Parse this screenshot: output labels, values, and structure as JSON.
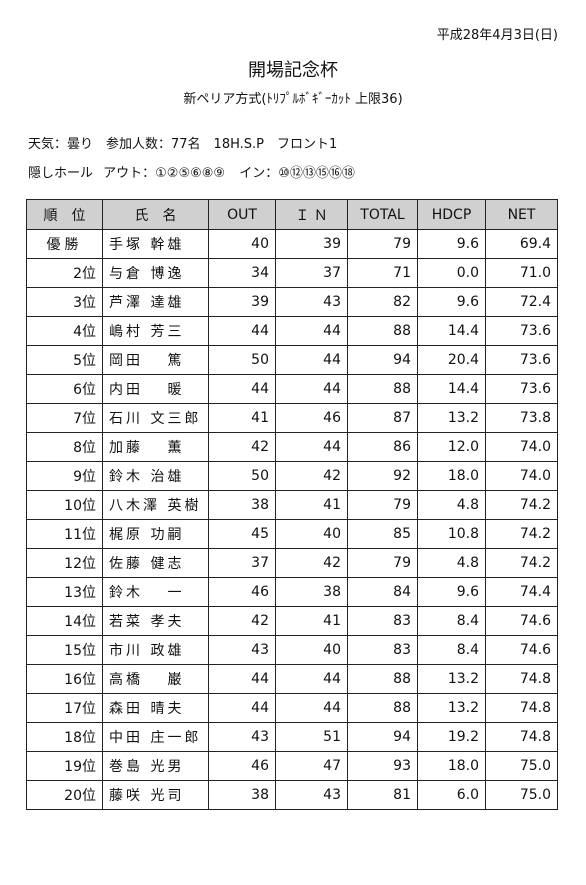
{
  "date": "平成28年4月3日(日)",
  "title": "開場記念杯",
  "subtitle": "新ペリア方式(ﾄﾘﾌﾟﾙﾎﾞｷﾞｰｶｯﾄ 上限36)",
  "info": {
    "line1": "天気：曇り　参加人数：77名　18H.S.P　フロント1",
    "hidden_label": "隠しホール",
    "out_holes": "アウト：①②⑤⑥⑧⑨",
    "in_holes": "イン：⑩⑫⑬⑮⑯⑱"
  },
  "table": {
    "headers": [
      "順　位",
      "氏　名",
      "OUT",
      "Ｉ Ｎ",
      "TOTAL",
      "HDCP",
      "NET"
    ],
    "rows": [
      {
        "rank": "優勝",
        "name": "手塚 幹雄",
        "out": "40",
        "in": "39",
        "total": "79",
        "hdcp": "9.6",
        "net": "69.4"
      },
      {
        "rank": "2位",
        "name": "与倉 博逸",
        "out": "34",
        "in": "37",
        "total": "71",
        "hdcp": "0.0",
        "net": "71.0"
      },
      {
        "rank": "3位",
        "name": "芦澤 達雄",
        "out": "39",
        "in": "43",
        "total": "82",
        "hdcp": "9.6",
        "net": "72.4"
      },
      {
        "rank": "4位",
        "name": "嶋村 芳三",
        "out": "44",
        "in": "44",
        "total": "88",
        "hdcp": "14.4",
        "net": "73.6"
      },
      {
        "rank": "5位",
        "name": "岡田　 篤",
        "out": "50",
        "in": "44",
        "total": "94",
        "hdcp": "20.4",
        "net": "73.6"
      },
      {
        "rank": "6位",
        "name": "内田　 暖",
        "out": "44",
        "in": "44",
        "total": "88",
        "hdcp": "14.4",
        "net": "73.6"
      },
      {
        "rank": "7位",
        "name": "石川 文三郎",
        "out": "41",
        "in": "46",
        "total": "87",
        "hdcp": "13.2",
        "net": "73.8"
      },
      {
        "rank": "8位",
        "name": "加藤　 薫",
        "out": "42",
        "in": "44",
        "total": "86",
        "hdcp": "12.0",
        "net": "74.0"
      },
      {
        "rank": "9位",
        "name": "鈴木 治雄",
        "out": "50",
        "in": "42",
        "total": "92",
        "hdcp": "18.0",
        "net": "74.0"
      },
      {
        "rank": "10位",
        "name": "八木澤 英樹",
        "out": "38",
        "in": "41",
        "total": "79",
        "hdcp": "4.8",
        "net": "74.2"
      },
      {
        "rank": "11位",
        "name": "梶原 功嗣",
        "out": "45",
        "in": "40",
        "total": "85",
        "hdcp": "10.8",
        "net": "74.2"
      },
      {
        "rank": "12位",
        "name": "佐藤 健志",
        "out": "37",
        "in": "42",
        "total": "79",
        "hdcp": "4.8",
        "net": "74.2"
      },
      {
        "rank": "13位",
        "name": "鈴木　 一",
        "out": "46",
        "in": "38",
        "total": "84",
        "hdcp": "9.6",
        "net": "74.4"
      },
      {
        "rank": "14位",
        "name": "若菜 孝夫",
        "out": "42",
        "in": "41",
        "total": "83",
        "hdcp": "8.4",
        "net": "74.6"
      },
      {
        "rank": "15位",
        "name": "市川 政雄",
        "out": "43",
        "in": "40",
        "total": "83",
        "hdcp": "8.4",
        "net": "74.6"
      },
      {
        "rank": "16位",
        "name": "高橋　 巌",
        "out": "44",
        "in": "44",
        "total": "88",
        "hdcp": "13.2",
        "net": "74.8"
      },
      {
        "rank": "17位",
        "name": "森田 晴夫",
        "out": "44",
        "in": "44",
        "total": "88",
        "hdcp": "13.2",
        "net": "74.8"
      },
      {
        "rank": "18位",
        "name": "中田 庄一郎",
        "out": "43",
        "in": "51",
        "total": "94",
        "hdcp": "19.2",
        "net": "74.8"
      },
      {
        "rank": "19位",
        "name": "巻島 光男",
        "out": "46",
        "in": "47",
        "total": "93",
        "hdcp": "18.0",
        "net": "75.0"
      },
      {
        "rank": "20位",
        "name": "藤咲 光司",
        "out": "38",
        "in": "43",
        "total": "81",
        "hdcp": "6.0",
        "net": "75.0"
      }
    ]
  },
  "colors": {
    "header_background": "#d0d0d0",
    "border": "#222222"
  }
}
